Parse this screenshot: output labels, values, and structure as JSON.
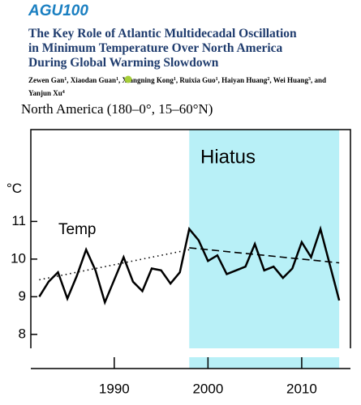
{
  "header": {
    "logo": "AGU100",
    "title_lines": [
      "The Key Role of Atlantic Multidecadal Oscillation",
      "in Minimum Temperature Over North America",
      "During Global Warming Slowdown"
    ],
    "authors": [
      {
        "name": "Zewen Gan",
        "affiliation": "1"
      },
      {
        "name": "Xiaodan Guan",
        "affiliation": "1"
      },
      {
        "name": "Xiangning Kong",
        "affiliation": "1"
      },
      {
        "name": "Ruixia Guo",
        "affiliation": "1"
      },
      {
        "name": "Haiyan Huang",
        "affiliation": "2"
      },
      {
        "name": "Wei Huang",
        "affiliation": "3"
      },
      {
        "name": "Yanjun Xu",
        "affiliation": "4"
      }
    ],
    "conjunction": "and"
  },
  "chart_data": {
    "type": "line",
    "title": "North America (180–0°, 15–60°N)",
    "y_label": "°C",
    "annotations": [
      "Temp",
      "Hiatus"
    ],
    "x": [
      1982,
      1983,
      1984,
      1985,
      1986,
      1987,
      1988,
      1989,
      1990,
      1991,
      1992,
      1993,
      1994,
      1995,
      1996,
      1997,
      1998,
      1999,
      2000,
      2001,
      2002,
      2003,
      2004,
      2005,
      2006,
      2007,
      2008,
      2009,
      2010,
      2011,
      2012,
      2013,
      2014
    ],
    "series": [
      {
        "color": "#000000",
        "values": [
          9.0,
          9.4,
          9.65,
          8.95,
          9.55,
          10.25,
          9.7,
          8.85,
          9.45,
          10.05,
          9.4,
          9.15,
          9.75,
          9.7,
          9.35,
          9.65,
          10.8,
          10.5,
          9.95,
          10.1,
          9.6,
          9.7,
          9.8,
          10.4,
          9.7,
          9.8,
          9.5,
          9.75,
          10.45,
          10.05,
          10.8,
          9.85,
          8.9
        ]
      }
    ],
    "trend_lines": [
      {
        "x": [
          1982,
          1998
        ],
        "values": [
          9.45,
          10.25
        ],
        "style": "dotted"
      },
      {
        "x": [
          1998,
          2014
        ],
        "values": [
          10.3,
          9.9
        ],
        "style": "dashed"
      }
    ],
    "shade": {
      "x": [
        1998,
        2014
      ],
      "color": "#b8f0f7"
    },
    "xlim": [
      1981.1,
      2015.2
    ],
    "ylim": [
      7.63,
      13.44
    ],
    "xticks": [
      1990,
      2000,
      2010
    ],
    "yticks": [
      8,
      9,
      10,
      11
    ]
  }
}
